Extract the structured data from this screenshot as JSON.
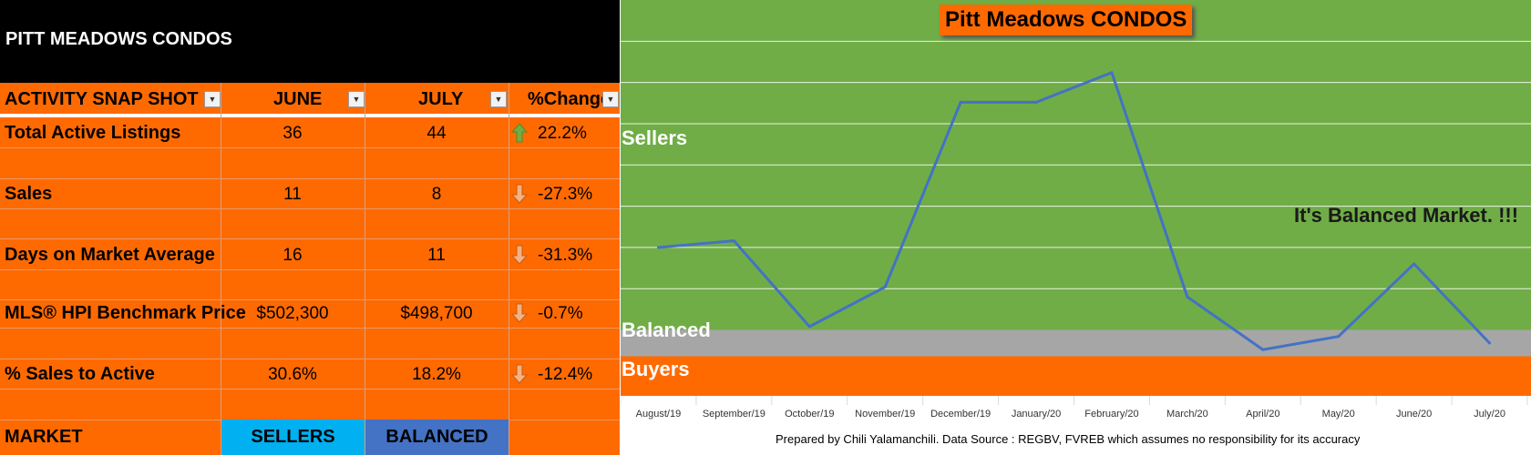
{
  "table": {
    "title": "PITT MEADOWS CONDOS",
    "headers": [
      "ACTIVITY SNAP SHOT",
      "JUNE",
      "JULY",
      "%Change"
    ],
    "rows": [
      {
        "label": "Total Active Listings",
        "june": "36",
        "july": "44",
        "change": "22.2%",
        "dir": "up"
      },
      {
        "label": "Sales",
        "june": "11",
        "july": "8",
        "change": "-27.3%",
        "dir": "down"
      },
      {
        "label": "Days on Market Average",
        "june": "16",
        "july": "11",
        "change": "-31.3%",
        "dir": "down"
      },
      {
        "label": "MLS® HPI Benchmark Price",
        "june": "$502,300",
        "july": "$498,700",
        "change": "-0.7%",
        "dir": "down"
      },
      {
        "label": "% Sales to Active",
        "june": "30.6%",
        "july": "18.2%",
        "change": "-12.4%",
        "dir": "down"
      }
    ],
    "market": {
      "label": "MARKET",
      "june": "SELLERS",
      "july": "BALANCED"
    }
  },
  "colors": {
    "orange": "#ff6a00",
    "green": "#70ad47",
    "gray": "#a6a6a6",
    "line": "#4472c4",
    "sellers_cell": "#00b0f0",
    "balanced_cell": "#4472c4",
    "arrow_up": "#70ad47",
    "arrow_down": "#f4b183"
  },
  "chart_data": {
    "type": "line",
    "title": "Pitt Meadows CONDOS",
    "categories": [
      "August/19",
      "September/19",
      "October/19",
      "November/19",
      "December/19",
      "January/20",
      "February/20",
      "March/20",
      "April/20",
      "May/20",
      "June/20",
      "July/20"
    ],
    "series": [
      {
        "values": [
          0.25,
          0.27,
          0.01,
          0.13,
          0.69,
          0.69,
          0.78,
          0.1,
          -0.06,
          -0.02,
          0.2,
          -0.04
        ]
      }
    ],
    "zones": [
      {
        "name": "Sellers",
        "range": [
          0.0,
          1.0
        ],
        "color": "#70ad47"
      },
      {
        "name": "Balanced",
        "range": [
          -0.08,
          0.0
        ],
        "color": "#a6a6a6"
      },
      {
        "name": "Buyers",
        "range": [
          -0.2,
          -0.08
        ],
        "color": "#ff6a00"
      }
    ],
    "ylim": [
      -0.2,
      1.0
    ],
    "grid": true,
    "annotation": "It's Balanced Market. !!!",
    "footer": "Prepared by Chili Yalamanchili. Data Source : REGBV, FVREB which assumes no responsibility for its accuracy"
  }
}
